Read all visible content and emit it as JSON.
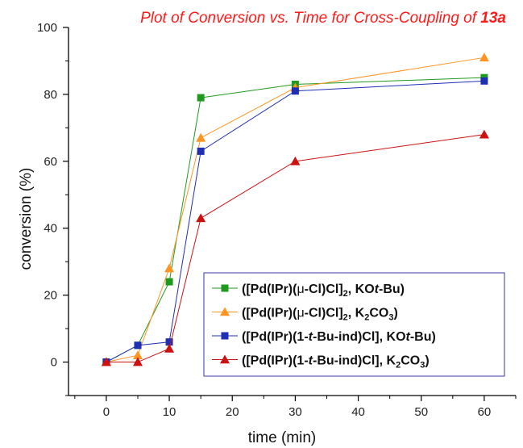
{
  "chart_data": {
    "type": "line",
    "title": {
      "prefix": "Plot of Conversion vs. Time for Cross-Coupling of ",
      "compound": "13a"
    },
    "xlabel": "time (min)",
    "ylabel": "conversion (%)",
    "xlim": [
      -6,
      65
    ],
    "ylim": [
      -10,
      100
    ],
    "xticks": [
      0,
      10,
      20,
      30,
      40,
      50,
      60
    ],
    "xticks_minor": [
      -5,
      5,
      15,
      25,
      35,
      45,
      55,
      65
    ],
    "yticks": [
      0,
      20,
      40,
      60,
      80,
      100
    ],
    "yticks_minor": [
      -10,
      10,
      30,
      50,
      70,
      90
    ],
    "legend_position": "lower-right",
    "grid": false,
    "x": [
      0,
      5,
      10,
      15,
      30,
      60
    ],
    "series": [
      {
        "label_parts": [
          {
            "t": "([Pd(IPr)("
          },
          {
            "t": "μ",
            "italic": false,
            "normal": true
          },
          {
            "t": "-Cl)Cl]"
          },
          {
            "t": "2",
            "sub": true
          },
          {
            "t": ", KO"
          },
          {
            "t": "t",
            "italic": true
          },
          {
            "t": "-Bu)"
          }
        ],
        "values": [
          0,
          5,
          24,
          79,
          83,
          85
        ],
        "color": "#1f9a1f",
        "marker": "square"
      },
      {
        "label_parts": [
          {
            "t": "([Pd(IPr)("
          },
          {
            "t": "μ",
            "italic": false,
            "normal": true
          },
          {
            "t": "-Cl)Cl]"
          },
          {
            "t": "2",
            "sub": true
          },
          {
            "t": ", K"
          },
          {
            "t": "2",
            "sub": true
          },
          {
            "t": "CO"
          },
          {
            "t": "3",
            "sub": true
          },
          {
            "t": ")"
          }
        ],
        "values": [
          0,
          2,
          28,
          67,
          82,
          91
        ],
        "color": "#ff9422",
        "marker": "triangle"
      },
      {
        "label_parts": [
          {
            "t": "([Pd(IPr)(1-"
          },
          {
            "t": "t",
            "italic": true
          },
          {
            "t": "-Bu-ind)Cl], KO"
          },
          {
            "t": "t",
            "italic": true
          },
          {
            "t": "-Bu)"
          }
        ],
        "values": [
          0,
          5,
          6,
          63,
          81,
          84
        ],
        "color": "#1f2fb3",
        "marker": "square"
      },
      {
        "label_parts": [
          {
            "t": "([Pd(IPr)(1-"
          },
          {
            "t": "t",
            "italic": true
          },
          {
            "t": "-Bu-ind)Cl], K"
          },
          {
            "t": "2",
            "sub": true
          },
          {
            "t": "CO"
          },
          {
            "t": "3",
            "sub": true
          },
          {
            "t": ")"
          }
        ],
        "values": [
          0,
          0,
          4,
          43,
          60,
          68
        ],
        "color": "#cc1111",
        "marker": "triangle"
      }
    ]
  }
}
